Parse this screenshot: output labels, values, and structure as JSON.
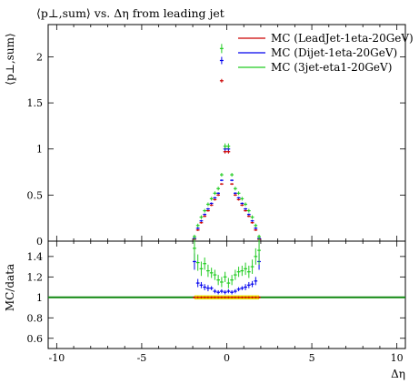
{
  "colors": {
    "series": [
      "#cc0000",
      "#0000ee",
      "#22cc22"
    ],
    "ratio_reference": "#118811",
    "data_band": "#e6e600",
    "frame": "#000000"
  },
  "chart_data": [
    {
      "type": "line",
      "panel": "main",
      "title": "⟨p⊥,sum⟩ vs. Δη from leading jet",
      "ylabel": "⟨p⊥,sum⟩",
      "xlabel": "",
      "xlim": [
        -10.5,
        10.5
      ],
      "ylim": [
        0,
        2.35
      ],
      "x_ticks": [
        -10,
        -5,
        0,
        5,
        10
      ],
      "y_ticks": [
        0,
        0.5,
        1,
        1.5,
        2
      ],
      "y_tick_labels": [
        "0",
        "0.5",
        "1",
        "1.5",
        "2"
      ],
      "grid": false,
      "legend_position": "top-right",
      "x": [
        -1.9,
        -1.7,
        -1.5,
        -1.3,
        -1.1,
        -0.9,
        -0.7,
        -0.5,
        -0.3,
        -0.1,
        0.1,
        0.3,
        0.5,
        0.7,
        0.9,
        1.1,
        1.3,
        1.5,
        1.7,
        1.9
      ],
      "series": [
        {
          "name": "MC (LeadJet-1eta-20GeV)",
          "values": [
            0.02,
            0.12,
            0.2,
            0.27,
            0.33,
            0.39,
            0.45,
            0.5,
            0.62,
            0.97,
            0.97,
            0.62,
            0.5,
            0.45,
            0.39,
            0.33,
            0.27,
            0.2,
            0.12,
            0.02
          ],
          "errors": [
            0.01,
            0.01,
            0.01,
            0.01,
            0.01,
            0.01,
            0.01,
            0.01,
            0.01,
            0.02,
            0.02,
            0.01,
            0.01,
            0.01,
            0.01,
            0.01,
            0.01,
            0.01,
            0.01,
            0.01
          ]
        },
        {
          "name": "MC (Dijet-1eta-20GeV)",
          "values": [
            0.03,
            0.14,
            0.22,
            0.29,
            0.35,
            0.41,
            0.47,
            0.52,
            0.66,
            1.0,
            1.0,
            0.66,
            0.52,
            0.47,
            0.41,
            0.35,
            0.29,
            0.22,
            0.14,
            0.03
          ],
          "errors": [
            0.01,
            0.01,
            0.01,
            0.01,
            0.01,
            0.01,
            0.01,
            0.01,
            0.01,
            0.02,
            0.02,
            0.01,
            0.01,
            0.01,
            0.01,
            0.01,
            0.01,
            0.01,
            0.01,
            0.01
          ]
        },
        {
          "name": "MC (3jet-eta1-20GeV)",
          "values": [
            0.05,
            0.17,
            0.26,
            0.33,
            0.4,
            0.46,
            0.52,
            0.57,
            0.72,
            1.03,
            1.03,
            0.72,
            0.57,
            0.52,
            0.46,
            0.4,
            0.33,
            0.26,
            0.17,
            0.05
          ],
          "errors": [
            0.02,
            0.02,
            0.02,
            0.02,
            0.02,
            0.02,
            0.02,
            0.02,
            0.02,
            0.03,
            0.03,
            0.02,
            0.02,
            0.02,
            0.02,
            0.02,
            0.02,
            0.02,
            0.02,
            0.02
          ]
        }
      ],
      "extra_points": [
        {
          "series": "MC (LeadJet-1eta-20GeV)",
          "x": -0.3,
          "y": 1.74,
          "error": 0.02
        },
        {
          "series": "MC (Dijet-1eta-20GeV)",
          "x": -0.3,
          "y": 1.96,
          "error": 0.04
        },
        {
          "series": "MC (3jet-eta1-20GeV)",
          "x": -0.3,
          "y": 2.09,
          "error": 0.05
        }
      ]
    },
    {
      "type": "line",
      "panel": "ratio",
      "ylabel": "MC/data",
      "xlabel": "Δη",
      "xlim": [
        -10.5,
        10.5
      ],
      "ylim": [
        0.5,
        1.55
      ],
      "x_ticks": [
        -10,
        -5,
        0,
        5,
        10
      ],
      "x_tick_labels": [
        "-10",
        "-5",
        "0",
        "5",
        "10"
      ],
      "y_ticks": [
        0.6,
        0.8,
        1,
        1.2,
        1.4
      ],
      "y_tick_labels": [
        "0.6",
        "0.8",
        "1",
        "1.2",
        "1.4"
      ],
      "reference_line": 1.0,
      "data_band": {
        "x": [
          -1.9,
          1.9
        ],
        "low": 0.98,
        "high": 1.02
      },
      "x": [
        -1.9,
        -1.7,
        -1.5,
        -1.3,
        -1.1,
        -0.9,
        -0.7,
        -0.5,
        -0.3,
        -0.1,
        0.1,
        0.3,
        0.5,
        0.7,
        0.9,
        1.1,
        1.3,
        1.5,
        1.7,
        1.9
      ],
      "series": [
        {
          "name": "MC (LeadJet-1eta-20GeV)",
          "values": [
            1.0,
            1.0,
            1.0,
            1.0,
            1.0,
            1.0,
            1.0,
            1.0,
            1.0,
            1.0,
            1.0,
            1.0,
            1.0,
            1.0,
            1.0,
            1.0,
            1.0,
            1.0,
            1.0,
            1.0
          ],
          "errors": [
            0.01,
            0.01,
            0.01,
            0.01,
            0.01,
            0.01,
            0.01,
            0.01,
            0.01,
            0.01,
            0.01,
            0.01,
            0.01,
            0.01,
            0.01,
            0.01,
            0.01,
            0.01,
            0.01,
            0.01
          ]
        },
        {
          "name": "MC (Dijet-1eta-20GeV)",
          "values": [
            1.35,
            1.14,
            1.12,
            1.1,
            1.09,
            1.09,
            1.06,
            1.05,
            1.06,
            1.05,
            1.06,
            1.05,
            1.06,
            1.08,
            1.09,
            1.1,
            1.12,
            1.13,
            1.16,
            1.35
          ],
          "errors": [
            0.08,
            0.04,
            0.03,
            0.03,
            0.03,
            0.02,
            0.02,
            0.02,
            0.02,
            0.02,
            0.02,
            0.02,
            0.02,
            0.02,
            0.02,
            0.03,
            0.03,
            0.03,
            0.04,
            0.08
          ]
        },
        {
          "name": "MC (3jet-eta1-20GeV)",
          "values": [
            1.48,
            1.34,
            1.28,
            1.33,
            1.26,
            1.24,
            1.22,
            1.17,
            1.15,
            1.2,
            1.14,
            1.17,
            1.22,
            1.25,
            1.26,
            1.28,
            1.25,
            1.3,
            1.4,
            1.46
          ],
          "errors": [
            0.12,
            0.08,
            0.07,
            0.06,
            0.06,
            0.05,
            0.05,
            0.05,
            0.05,
            0.05,
            0.05,
            0.05,
            0.05,
            0.05,
            0.05,
            0.06,
            0.06,
            0.07,
            0.08,
            0.14
          ]
        }
      ]
    }
  ]
}
